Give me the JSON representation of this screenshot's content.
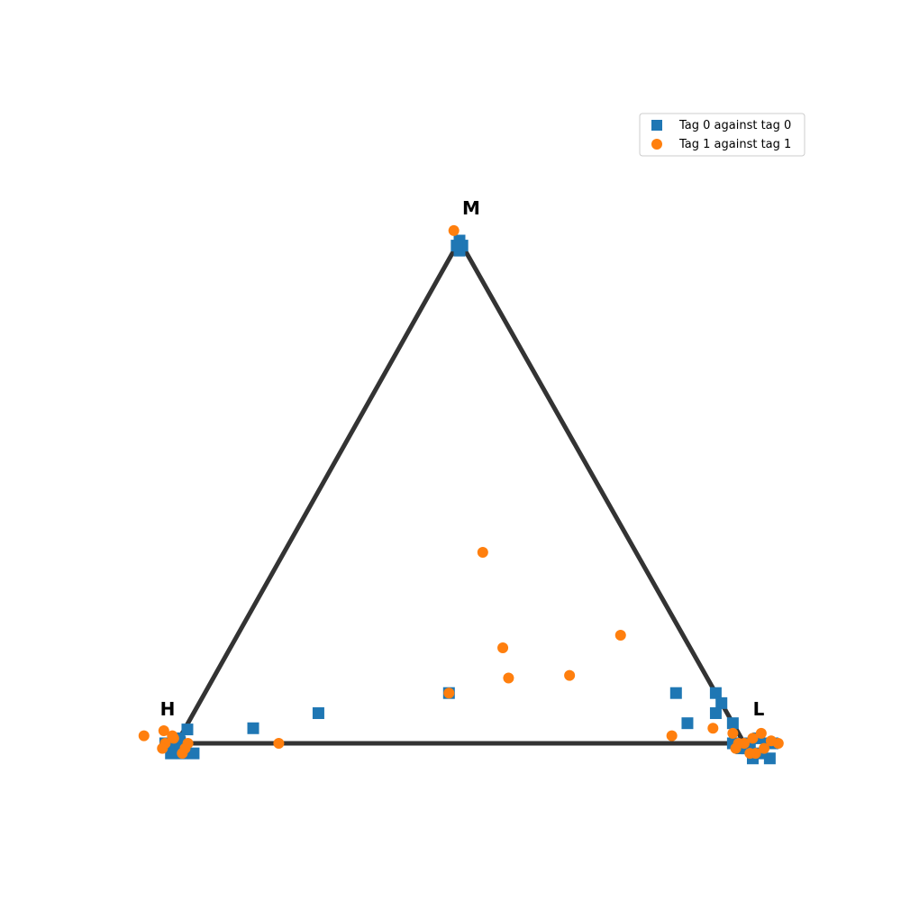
{
  "chart_data": {
    "type": "scatter",
    "projection": "ternary",
    "title": "",
    "vertices": [
      {
        "id": "H",
        "label": "H"
      },
      {
        "id": "M",
        "label": "M"
      },
      {
        "id": "L",
        "label": "L"
      }
    ],
    "legend_position": "top-right",
    "grid": false,
    "axes_visible": false,
    "triangle_color": "#333333",
    "series": [
      {
        "name": "Tag 0 against tag 0",
        "marker": "square",
        "color": "#1f77b4",
        "points": [
          {
            "H": 0.0,
            "M": 1.0,
            "L": 0.0
          },
          {
            "H": 0.0,
            "M": 0.99,
            "L": 0.01
          },
          {
            "H": 0.01,
            "M": 0.98,
            "L": 0.01
          },
          {
            "H": 0.01,
            "M": 0.99,
            "L": 0.0
          },
          {
            "H": 0.97,
            "M": 0.035,
            "L": 0.0
          },
          {
            "H": 1.0,
            "M": 0.0,
            "L": 0.0
          },
          {
            "H": 1.01,
            "M": -0.01,
            "L": 0.0
          },
          {
            "H": 1.02,
            "M": -0.02,
            "L": 0.0
          },
          {
            "H": 0.99,
            "M": -0.005,
            "L": 0.01
          },
          {
            "H": 1.0,
            "M": -0.02,
            "L": 0.02
          },
          {
            "H": 1.02,
            "M": 0.0,
            "L": -0.02
          },
          {
            "H": 0.98,
            "M": -0.02,
            "L": 0.04
          },
          {
            "H": 0.99,
            "M": 0.01,
            "L": 0.0
          },
          {
            "H": 0.85,
            "M": 0.03,
            "L": 0.12
          },
          {
            "H": 0.72,
            "M": 0.06,
            "L": 0.22
          },
          {
            "H": 0.47,
            "M": 0.1,
            "L": 0.43
          },
          {
            "H": 0.0,
            "M": 0.1,
            "L": 0.9
          },
          {
            "H": 0.08,
            "M": 0.04,
            "L": 0.88
          },
          {
            "H": 0.07,
            "M": 0.1,
            "L": 0.83
          },
          {
            "H": 0.0,
            "M": 0.08,
            "L": 0.92
          },
          {
            "H": 0.02,
            "M": 0.06,
            "L": 0.92
          },
          {
            "H": 0.0,
            "M": 0.04,
            "L": 0.96
          },
          {
            "H": -0.01,
            "M": 0.0,
            "L": 1.01
          },
          {
            "H": 0.02,
            "M": 0.0,
            "L": 0.98
          },
          {
            "H": -0.04,
            "M": 0.0,
            "L": 1.04
          },
          {
            "H": -0.03,
            "M": -0.03,
            "L": 1.06
          },
          {
            "H": 0.0,
            "M": -0.03,
            "L": 1.03
          },
          {
            "H": 0.01,
            "M": -0.01,
            "L": 1.0
          },
          {
            "H": 0.0,
            "M": -0.01,
            "L": 1.01
          },
          {
            "H": -0.05,
            "M": 0.0,
            "L": 1.05
          },
          {
            "H": -0.03,
            "M": 0.01,
            "L": 1.02
          },
          {
            "H": -0.02,
            "M": -0.02,
            "L": 1.04
          }
        ]
      },
      {
        "name": "Tag 1 against tag 1",
        "marker": "circle",
        "color": "#ff7f0e",
        "points": [
          {
            "H": 0.0,
            "M": 1.02,
            "L": -0.02
          },
          {
            "H": 0.82,
            "M": 0.0,
            "L": 0.18
          },
          {
            "H": 1.05,
            "M": 0.015,
            "L": -0.065
          },
          {
            "H": 1.02,
            "M": 0.0,
            "L": -0.02
          },
          {
            "H": 1.0,
            "M": 0.01,
            "L": -0.01
          },
          {
            "H": 1.01,
            "M": 0.025,
            "L": -0.035
          },
          {
            "H": 0.98,
            "M": 0.0,
            "L": 0.02
          },
          {
            "H": 1.0,
            "M": -0.02,
            "L": 0.02
          },
          {
            "H": 1.03,
            "M": -0.01,
            "L": -0.02
          },
          {
            "H": 0.99,
            "M": -0.01,
            "L": 0.02
          },
          {
            "H": 1.0,
            "M": 0.015,
            "L": -0.015
          },
          {
            "H": 0.47,
            "M": 0.1,
            "L": 0.43
          },
          {
            "H": 0.27,
            "M": 0.38,
            "L": 0.35
          },
          {
            "H": 0.33,
            "M": 0.19,
            "L": 0.48
          },
          {
            "H": 0.35,
            "M": 0.13,
            "L": 0.52
          },
          {
            "H": 0.24,
            "M": 0.135,
            "L": 0.625
          },
          {
            "H": 0.11,
            "M": 0.215,
            "L": 0.675
          },
          {
            "H": 0.12,
            "M": 0.015,
            "L": 0.865
          },
          {
            "H": 0.04,
            "M": 0.03,
            "L": 0.93
          },
          {
            "H": 0.01,
            "M": 0.02,
            "L": 0.97
          },
          {
            "H": 0.0,
            "M": 0.0,
            "L": 1.0
          },
          {
            "H": -0.04,
            "M": 0.02,
            "L": 1.02
          },
          {
            "H": -0.06,
            "M": 0.0,
            "L": 1.06
          },
          {
            "H": 0.02,
            "M": -0.01,
            "L": 0.99
          },
          {
            "H": -0.01,
            "M": -0.02,
            "L": 1.03
          },
          {
            "H": 0.0,
            "M": -0.02,
            "L": 1.02
          },
          {
            "H": -0.03,
            "M": -0.01,
            "L": 1.04
          },
          {
            "H": -0.02,
            "M": 0.01,
            "L": 1.01
          },
          {
            "H": 0.01,
            "M": 0.0,
            "L": 0.99
          },
          {
            "H": -0.05,
            "M": 0.005,
            "L": 1.045
          }
        ]
      }
    ]
  }
}
